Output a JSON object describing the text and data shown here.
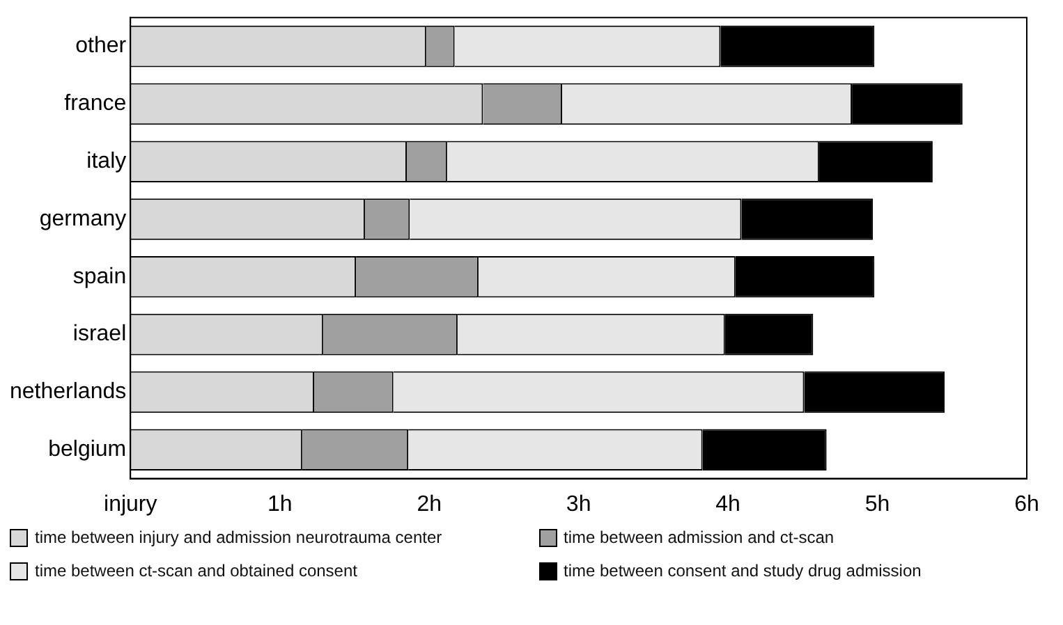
{
  "chart_data": {
    "type": "bar",
    "orientation": "horizontal",
    "stacked": true,
    "grid": false,
    "legend": "bottom",
    "categories": [
      "other",
      "france",
      "italy",
      "germany",
      "spain",
      "israel",
      "netherlands",
      "belgium"
    ],
    "series": [
      {
        "name": "time between injury and admission neurotrauma center",
        "color": "#d8d8d8",
        "values": [
          1.98,
          2.36,
          1.85,
          1.57,
          1.51,
          1.29,
          1.23,
          1.15
        ]
      },
      {
        "name": "time between admission and ct-scan",
        "color": "#a0a0a0",
        "values": [
          0.19,
          0.53,
          0.27,
          0.3,
          0.82,
          0.9,
          0.53,
          0.71
        ]
      },
      {
        "name": "time between ct-scan and obtained consent",
        "color": "#e6e6e6",
        "values": [
          1.78,
          1.94,
          2.49,
          2.22,
          1.72,
          1.79,
          2.75,
          1.97
        ]
      },
      {
        "name": "time between consent and study drug admission",
        "color": "#000000",
        "values": [
          1.03,
          0.74,
          0.76,
          0.88,
          0.93,
          0.59,
          0.94,
          0.83
        ]
      }
    ],
    "xlim": [
      0,
      6
    ],
    "xticks": [
      {
        "value": 0,
        "label": "injury"
      },
      {
        "value": 1,
        "label": "1h"
      },
      {
        "value": 2,
        "label": "2h"
      },
      {
        "value": 3,
        "label": "3h"
      },
      {
        "value": 4,
        "label": "4h"
      },
      {
        "value": 5,
        "label": "5h"
      },
      {
        "value": 6,
        "label": "6h"
      }
    ]
  }
}
